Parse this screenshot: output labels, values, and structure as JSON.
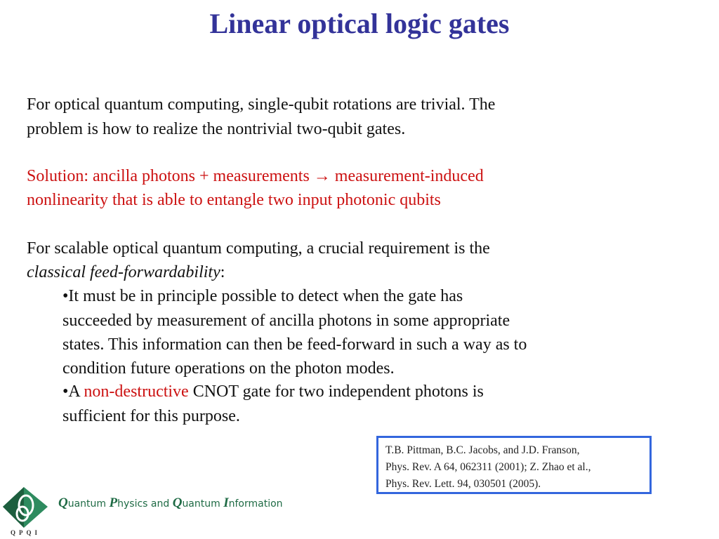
{
  "title": "Linear optical logic gates",
  "para1": [
    "For optical quantum computing, single-qubit rotations are trivial. The",
    "problem is how to realize the nontrivial two-qubit gates."
  ],
  "para2": [
    "Solution: ancilla photons + measurements → measurement-induced",
    "nonlinearity that is able to entangle two input photonic qubits"
  ],
  "para3": {
    "line1": "For scalable optical quantum computing, a crucial requirement is the",
    "term": "classical feed-forwardability",
    "term_suffix": ":"
  },
  "bullet1": [
    "•It must be in principle possible to detect when the gate has",
    "succeeded by measurement of  ancilla photons in some appropriate",
    "states. This information can then be feed-forward in such a way as to",
    "condition future operations on the photon modes."
  ],
  "bullet2": {
    "prefix": "•A ",
    "highlight": "non-destructive",
    "rest": " CNOT gate for two independent photons is",
    "line2": "sufficient for this purpose."
  },
  "reference": [
    "T.B. Pittman, B.C. Jacobs, and J.D. Franson,",
    "Phys. Rev. A 64, 062311 (2001); Z. Zhao et al.,",
    "Phys. Rev. Lett. 94, 030501 (2005)."
  ],
  "logo": {
    "initials": [
      "Q",
      "P",
      "Q",
      "I"
    ],
    "words": [
      "uantum ",
      "hysics and ",
      "uantum ",
      "nformation"
    ],
    "abbrev": "QPQI"
  },
  "colors": {
    "title": "#333399",
    "highlight": "#cc1111",
    "ref_border": "#3366dd",
    "logo": "#1f6b45"
  }
}
